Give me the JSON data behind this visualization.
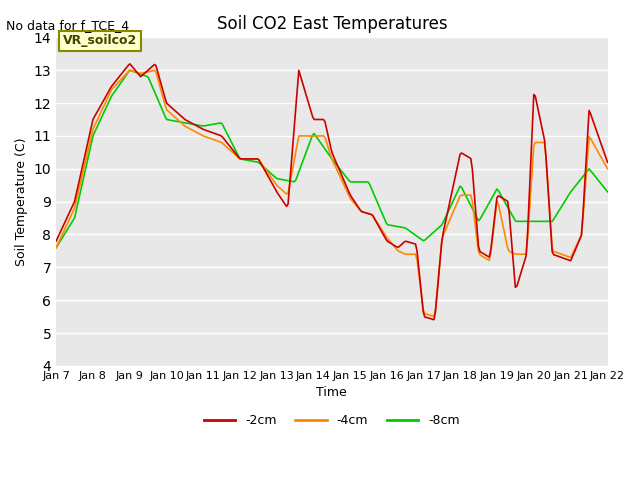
{
  "title": "Soil CO2 East Temperatures",
  "no_data_text": "No data for f_TCE_4",
  "annotation_text": "VR_soilco2",
  "xlabel": "Time",
  "ylabel": "Soil Temperature (C)",
  "ylim": [
    4.0,
    14.0
  ],
  "yticks": [
    4.0,
    5.0,
    6.0,
    7.0,
    8.0,
    9.0,
    10.0,
    11.0,
    12.0,
    13.0,
    14.0
  ],
  "xtick_labels": [
    "Jan 7",
    "Jan 8",
    "Jan 9",
    "Jan 10",
    "Jan 11",
    "Jan 12",
    "Jan 13",
    "Jan 14",
    "Jan 15",
    "Jan 16",
    "Jan 17",
    "Jan 18",
    "Jan 19",
    "Jan 20",
    "Jan 21",
    "Jan 22"
  ],
  "colors": {
    "neg2cm": "#cc0000",
    "neg4cm": "#ff8800",
    "neg8cm": "#00cc00",
    "background": "#e8e8e8",
    "annotation_bg": "#ffffcc",
    "annotation_border": "#888800"
  },
  "legend_labels": [
    "-2cm",
    "-4cm",
    "-8cm"
  ],
  "num_points": 360
}
